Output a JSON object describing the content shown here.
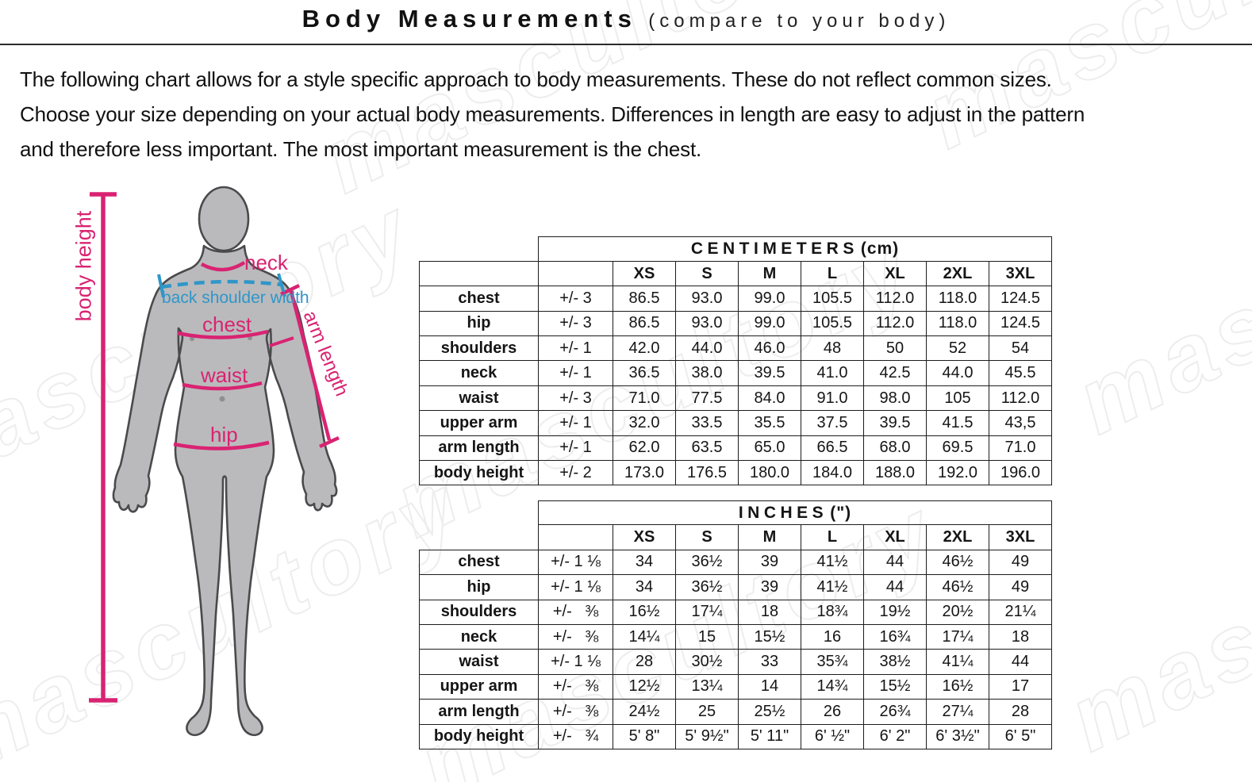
{
  "page": {
    "title": "Body Measurements",
    "subtitle": "(compare to your body)",
    "intro_lines": [
      "The following chart allows for a style specific approach to body measurements. These do not reflect common sizes.",
      "Choose your size depending on your actual body measurements. Differences in length are easy to adjust in the pattern",
      "and therefore less important. The most important measurement is the chest."
    ],
    "watermark_text": "mascultory"
  },
  "figure": {
    "labels": {
      "body_height": "body height",
      "neck": "neck",
      "back_shoulder_width": "back shoulder width",
      "chest": "chest",
      "waist": "waist",
      "hip": "hip",
      "arm_length": "arm length"
    },
    "colors": {
      "measurement_pink": "#d92372",
      "shoulder_blue": "#2f96c9",
      "body_fill": "#bababc",
      "body_outline": "#4a4a4c"
    }
  },
  "tables": [
    {
      "unit_word": "CENTIMETERS",
      "unit_suffix": "(cm)",
      "size_headers": [
        "XS",
        "S",
        "M",
        "L",
        "XL",
        "2XL",
        "3XL"
      ],
      "rows": [
        {
          "label": "chest",
          "tolerance": "+/- 3",
          "values": [
            "86.5",
            "93.0",
            "99.0",
            "105.5",
            "112.0",
            "118.0",
            "124.5"
          ]
        },
        {
          "label": "hip",
          "tolerance": "+/- 3",
          "values": [
            "86.5",
            "93.0",
            "99.0",
            "105.5",
            "112.0",
            "118.0",
            "124.5"
          ]
        },
        {
          "label": "shoulders",
          "tolerance": "+/- 1",
          "values": [
            "42.0",
            "44.0",
            "46.0",
            "48",
            "50",
            "52",
            "54"
          ]
        },
        {
          "label": "neck",
          "tolerance": "+/- 1",
          "values": [
            "36.5",
            "38.0",
            "39.5",
            "41.0",
            "42.5",
            "44.0",
            "45.5"
          ]
        },
        {
          "label": "waist",
          "tolerance": "+/- 3",
          "values": [
            "71.0",
            "77.5",
            "84.0",
            "91.0",
            "98.0",
            "105",
            "112.0"
          ]
        },
        {
          "label": "upper arm",
          "tolerance": "+/- 1",
          "values": [
            "32.0",
            "33.5",
            "35.5",
            "37.5",
            "39.5",
            "41.5",
            "43,5"
          ]
        },
        {
          "label": "arm length",
          "tolerance": "+/- 1",
          "values": [
            "62.0",
            "63.5",
            "65.0",
            "66.5",
            "68.0",
            "69.5",
            "71.0"
          ]
        },
        {
          "label": "body height",
          "tolerance": "+/- 2",
          "values": [
            "173.0",
            "176.5",
            "180.0",
            "184.0",
            "188.0",
            "192.0",
            "196.0"
          ]
        }
      ]
    },
    {
      "unit_word": "INCHES",
      "unit_suffix": "(\")",
      "size_headers": [
        "XS",
        "S",
        "M",
        "L",
        "XL",
        "2XL",
        "3XL"
      ],
      "rows": [
        {
          "label": "chest",
          "tolerance": "+/- 1 ⅛",
          "values": [
            "34",
            "36½",
            "39",
            "41½",
            "44",
            "46½",
            "49"
          ]
        },
        {
          "label": "hip",
          "tolerance": "+/- 1 ⅛",
          "values": [
            "34",
            "36½",
            "39",
            "41½",
            "44",
            "46½",
            "49"
          ]
        },
        {
          "label": "shoulders",
          "tolerance": "+/-   ⅜",
          "values": [
            "16½",
            "17¼",
            "18",
            "18¾",
            "19½",
            "20½",
            "21¼"
          ]
        },
        {
          "label": "neck",
          "tolerance": "+/-   ⅜",
          "values": [
            "14¼",
            "15",
            "15½",
            "16",
            "16¾",
            "17¼",
            "18"
          ]
        },
        {
          "label": "waist",
          "tolerance": "+/- 1 ⅛",
          "values": [
            "28",
            "30½",
            "33",
            "35¾",
            "38½",
            "41¼",
            "44"
          ]
        },
        {
          "label": "upper arm",
          "tolerance": "+/-   ⅜",
          "values": [
            "12½",
            "13¼",
            "14",
            "14¾",
            "15½",
            "16½",
            "17"
          ]
        },
        {
          "label": "arm length",
          "tolerance": "+/-   ⅜",
          "values": [
            "24½",
            "25",
            "25½",
            "26",
            "26¾",
            "27¼",
            "28"
          ]
        },
        {
          "label": "body height",
          "tolerance": "+/-   ¾",
          "values": [
            "5' 8\"",
            "5' 9½\"",
            "5' 11\"",
            "6' ½\"",
            "6' 2\"",
            "6' 3½\"",
            "6' 5\""
          ]
        }
      ]
    }
  ]
}
